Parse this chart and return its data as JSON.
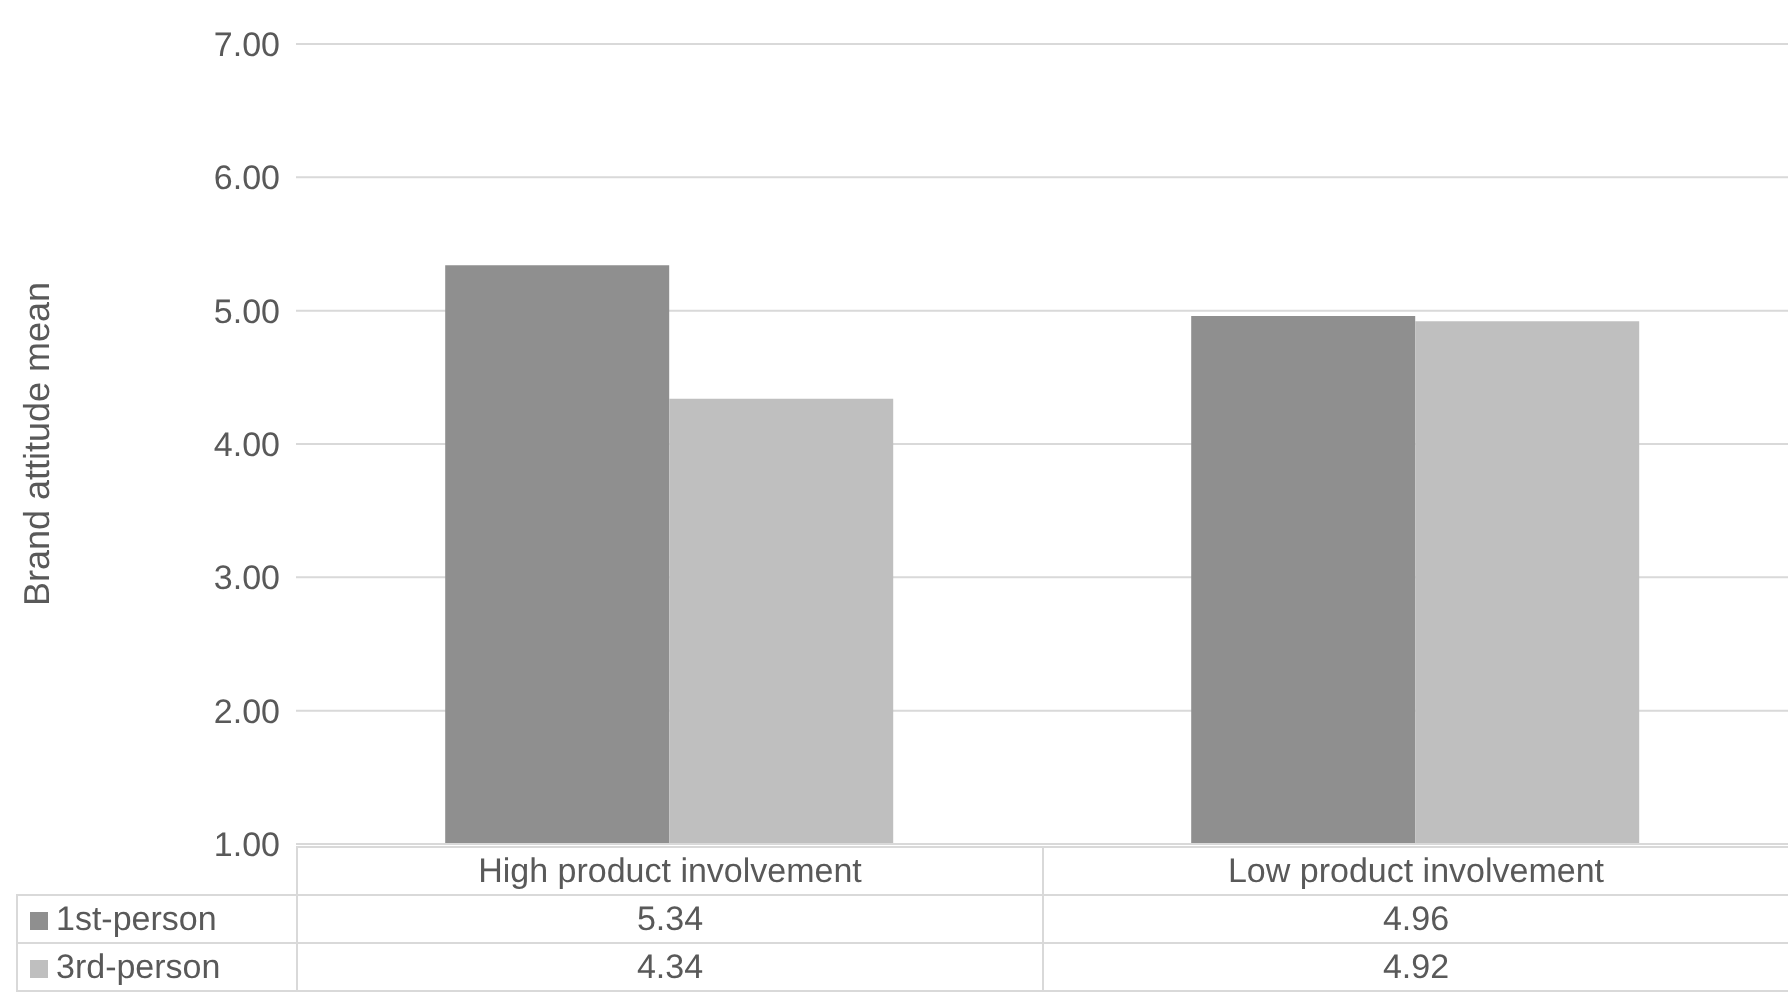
{
  "chart_data": {
    "type": "bar",
    "ylabel": "Brand attitude mean",
    "categories": [
      "High product involvement",
      "Low product involvement"
    ],
    "series": [
      {
        "name": "1st-person",
        "color": "#8f8f8f",
        "values": [
          5.34,
          4.96
        ]
      },
      {
        "name": "3rd-person",
        "color": "#bfbfbf",
        "values": [
          4.34,
          4.92
        ]
      }
    ],
    "ylim": [
      1,
      7
    ],
    "yticks": [
      {
        "value": 1,
        "label": "1.00"
      },
      {
        "value": 2,
        "label": "2.00"
      },
      {
        "value": 3,
        "label": "3.00"
      },
      {
        "value": 4,
        "label": "4.00"
      },
      {
        "value": 5,
        "label": "5.00"
      },
      {
        "value": 6,
        "label": "6.00"
      },
      {
        "value": 7,
        "label": "7.00"
      }
    ],
    "grid": "y",
    "legend": "bottom",
    "data_labels": true
  }
}
